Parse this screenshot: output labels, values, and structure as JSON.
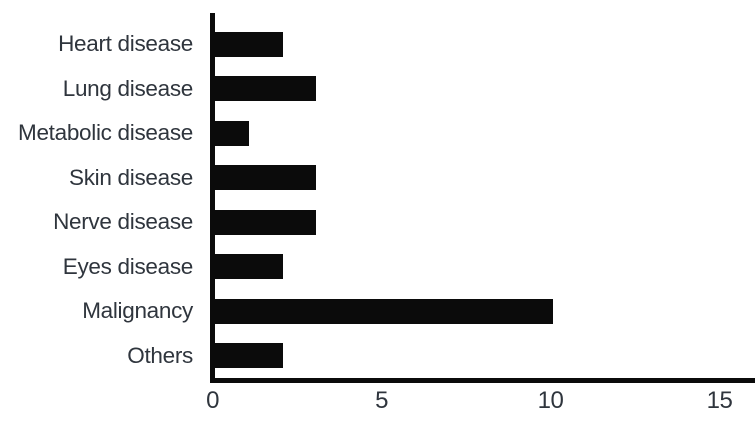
{
  "chart_data": {
    "type": "bar",
    "orientation": "horizontal",
    "title": "",
    "xlabel": "",
    "ylabel": "",
    "categories": [
      "Heart disease",
      "Lung disease",
      "Metabolic disease",
      "Skin disease",
      "Nerve disease",
      "Eyes disease",
      "Malignancy",
      "Others"
    ],
    "values": [
      2,
      3,
      1,
      3,
      3,
      2,
      10,
      2
    ],
    "xlim": [
      0,
      15
    ],
    "xticks": [
      0,
      5,
      10,
      15
    ],
    "grid": false,
    "legend": null,
    "bar_color": "#0b0b0b",
    "axis_color": "#0b0b0b",
    "text_color": "#2f353d",
    "background_color": "#ffffff"
  }
}
